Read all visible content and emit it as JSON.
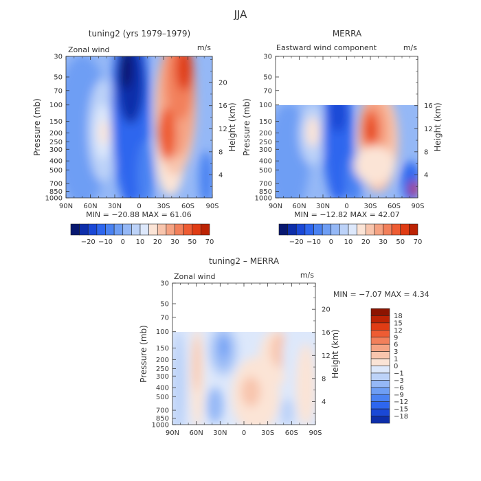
{
  "figure": {
    "title": "JJA"
  },
  "colors": {
    "blues": [
      "#081870",
      "#0d2eaa",
      "#1a48d6",
      "#2e66ee",
      "#4a82f2",
      "#6e9ef4",
      "#95b8f6",
      "#bcd2f8",
      "#dde8fb"
    ],
    "reds": [
      "#fbe4d6",
      "#f8c5ad",
      "#f5a383",
      "#f2805b",
      "#ee5c33",
      "#e03c14",
      "#bc2304",
      "#8c1400"
    ]
  },
  "chart_data": [
    {
      "type": "heatmap",
      "id": "p1",
      "title": "tuning2 (yrs 1979–1979)",
      "left_label": "Zonal wind",
      "units": "m/s",
      "ylabel": "Pressure (mb)",
      "ylabel_right": "Height (km)",
      "x_ticks": [
        "90N",
        "60N",
        "30N",
        "0",
        "30S",
        "60S",
        "90S"
      ],
      "x_range": [
        90,
        -90
      ],
      "y_ticks": [
        1000,
        850,
        700,
        500,
        400,
        300,
        250,
        200,
        150,
        100,
        70,
        50,
        30
      ],
      "y_range": [
        30,
        1000
      ],
      "height_ticks": [
        4,
        8,
        12,
        16,
        20
      ],
      "data_top_pressure": 30,
      "stats": "MIN = −20.88   MAX =  61.06",
      "colorbar": {
        "labels": [
          "−20",
          "−10",
          "0",
          "10",
          "20",
          "30",
          "50",
          "70"
        ],
        "n_colors": 16
      },
      "field_features": [
        {
          "lat": 40,
          "p": 70,
          "value": -20,
          "kind": "jet"
        },
        {
          "lat": -50,
          "p": 50,
          "value": 60,
          "kind": "jet"
        },
        {
          "lat": -30,
          "p": 200,
          "value": 50,
          "kind": "jet"
        },
        {
          "lat": 50,
          "p": 200,
          "value": 20,
          "kind": "jet"
        }
      ]
    },
    {
      "type": "heatmap",
      "id": "p2",
      "title": "MERRA",
      "left_label": "Eastward wind component",
      "units": "m/s",
      "ylabel": "Pressure (mb)",
      "ylabel_right": "Height (km)",
      "x_ticks": [
        "90N",
        "60N",
        "30N",
        "0",
        "30S",
        "60S",
        "90S"
      ],
      "x_range": [
        90,
        -90
      ],
      "y_ticks": [
        1000,
        850,
        700,
        500,
        400,
        300,
        250,
        200,
        150,
        100,
        70,
        50,
        30
      ],
      "y_range": [
        30,
        1000
      ],
      "height_ticks": [
        4,
        8,
        12,
        16
      ],
      "data_top_pressure": 100,
      "stats": "MIN = −12.82   MAX =  42.07",
      "colorbar": {
        "labels": [
          "−20",
          "−10",
          "0",
          "10",
          "20",
          "30",
          "50",
          "70"
        ],
        "n_colors": 16
      },
      "field_features": [
        {
          "lat": -30,
          "p": 200,
          "value": 42,
          "kind": "jet"
        },
        {
          "lat": 45,
          "p": 200,
          "value": 20,
          "kind": "jet"
        },
        {
          "lat": 5,
          "p": 120,
          "value": -13,
          "kind": "jet"
        }
      ]
    },
    {
      "type": "heatmap",
      "id": "p3",
      "title": "tuning2 – MERRA",
      "left_label": "Zonal wind",
      "units": "m/s",
      "ylabel": "Pressure (mb)",
      "ylabel_right": "Height (km)",
      "x_ticks": [
        "90N",
        "60N",
        "30N",
        "0",
        "30S",
        "60S",
        "90S"
      ],
      "x_range": [
        90,
        -90
      ],
      "y_ticks": [
        1000,
        850,
        700,
        500,
        400,
        300,
        250,
        200,
        150,
        100,
        70,
        50,
        30
      ],
      "y_range": [
        30,
        1000
      ],
      "height_ticks": [
        4,
        8,
        12,
        16,
        20
      ],
      "data_top_pressure": 100,
      "stats": "MIN =   −7.07   MAX =    4.34",
      "colorbar": {
        "labels": [
          "18",
          "15",
          "12",
          "9",
          "6",
          "3",
          "1",
          "0",
          "−1",
          "−3",
          "−6",
          "−9",
          "−12",
          "−15",
          "−18"
        ],
        "n_colors": 16
      },
      "field_features": [
        {
          "lat": 25,
          "p": 200,
          "value": -7,
          "kind": "anomaly"
        },
        {
          "lat": 55,
          "p": 300,
          "value": 4,
          "kind": "anomaly"
        },
        {
          "lat": -15,
          "p": 500,
          "value": 4,
          "kind": "anomaly"
        }
      ]
    }
  ]
}
